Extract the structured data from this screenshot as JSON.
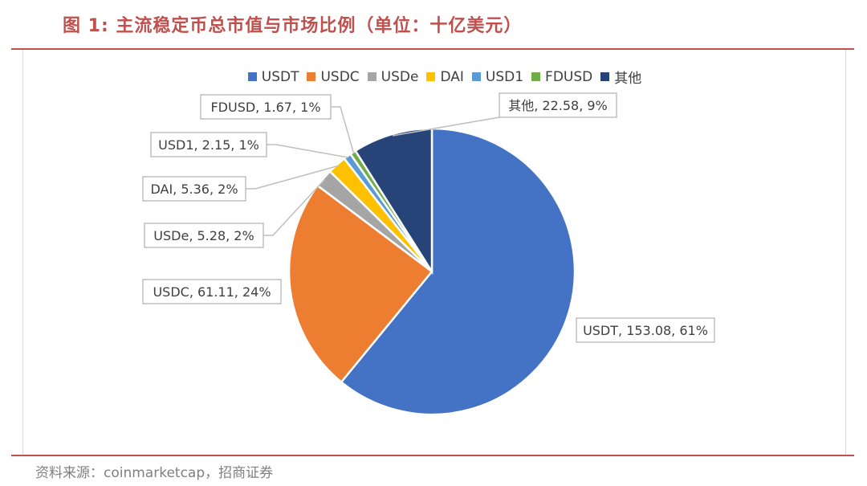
{
  "figure": {
    "title": "图 1:  主流稳定币总市值与市场比例（单位：十亿美元）",
    "source": "资料来源：coinmarketcap，招商证券"
  },
  "chart_data": {
    "type": "pie",
    "title": "",
    "legend_position": "top",
    "start_angle_deg": 0,
    "direction": "clockwise",
    "slices": [
      {
        "name": "USDT",
        "value": 153.08,
        "percent": "61%",
        "color": "#4472c4",
        "label": "USDT, 153.08, 61%"
      },
      {
        "name": "USDC",
        "value": 61.11,
        "percent": "24%",
        "color": "#ed7d31",
        "label": "USDC, 61.11, 24%"
      },
      {
        "name": "USDe",
        "value": 5.28,
        "percent": "2%",
        "color": "#a5a5a5",
        "label": "USDe, 5.28, 2%"
      },
      {
        "name": "DAI",
        "value": 5.36,
        "percent": "2%",
        "color": "#ffc000",
        "label": "DAI, 5.36, 2%"
      },
      {
        "name": "USD1",
        "value": 2.15,
        "percent": "1%",
        "color": "#5b9bd5",
        "label": "USD1, 2.15, 1%"
      },
      {
        "name": "FDUSD",
        "value": 1.67,
        "percent": "1%",
        "color": "#70ad47",
        "label": "FDUSD, 1.67, 1%"
      },
      {
        "name": "其他",
        "value": 22.58,
        "percent": "9%",
        "color": "#264478",
        "label": "其他, 22.58, 9%"
      }
    ]
  }
}
